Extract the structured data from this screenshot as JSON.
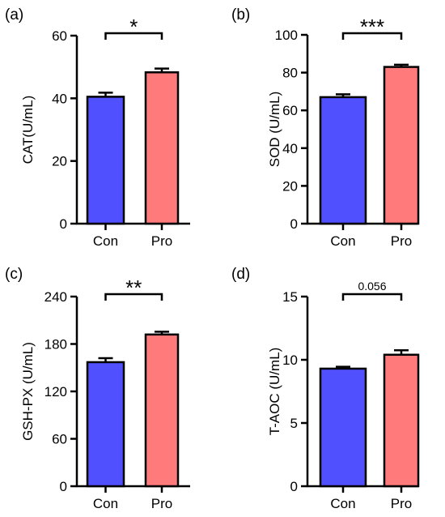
{
  "chart_data": [
    {
      "type": "bar",
      "panel_label": "(a)",
      "categories": [
        "Con",
        "Pro"
      ],
      "values": [
        40.5,
        48.3
      ],
      "errors": [
        1.3,
        1.2
      ],
      "ylabel": "CAT(U/mL)",
      "ylim": [
        0,
        60
      ],
      "yticks": [
        0,
        20,
        40,
        60
      ],
      "significance": "*",
      "colors": [
        "#5050ff",
        "#ff7b7b"
      ]
    },
    {
      "type": "bar",
      "panel_label": "(b)",
      "categories": [
        "Con",
        "Pro"
      ],
      "values": [
        67,
        83
      ],
      "errors": [
        1.5,
        1.2
      ],
      "ylabel": "SOD (U/mL)",
      "ylim": [
        0,
        100
      ],
      "yticks": [
        0,
        20,
        40,
        60,
        80,
        100
      ],
      "significance": "***",
      "colors": [
        "#5050ff",
        "#ff7b7b"
      ]
    },
    {
      "type": "bar",
      "panel_label": "(c)",
      "categories": [
        "Con",
        "Pro"
      ],
      "values": [
        157,
        192
      ],
      "errors": [
        5,
        3.5
      ],
      "ylabel": "GSH-PX (U/mL)",
      "ylim": [
        0,
        240
      ],
      "yticks": [
        0,
        60,
        120,
        180,
        240
      ],
      "significance": "**",
      "colors": [
        "#5050ff",
        "#ff7b7b"
      ]
    },
    {
      "type": "bar",
      "panel_label": "(d)",
      "categories": [
        "Con",
        "Pro"
      ],
      "values": [
        9.3,
        10.4
      ],
      "errors": [
        0.15,
        0.35
      ],
      "ylabel": "T-AOC (U/mL)",
      "ylim": [
        0,
        15
      ],
      "yticks": [
        0,
        5,
        10,
        15
      ],
      "significance": "0.056",
      "colors": [
        "#5050ff",
        "#ff7b7b"
      ]
    }
  ]
}
